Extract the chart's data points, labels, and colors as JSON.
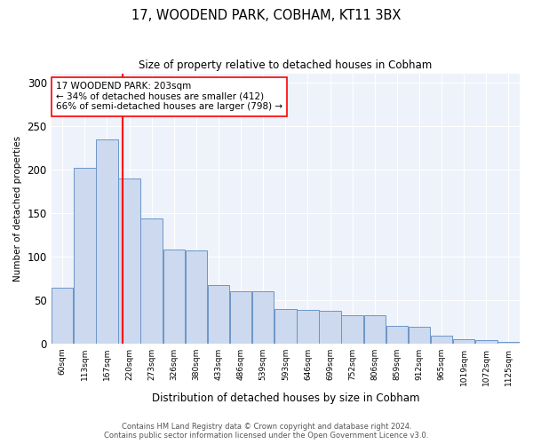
{
  "title": "17, WOODEND PARK, COBHAM, KT11 3BX",
  "subtitle": "Size of property relative to detached houses in Cobham",
  "xlabel": "Distribution of detached houses by size in Cobham",
  "ylabel": "Number of detached properties",
  "bin_labels": [
    "60sqm",
    "113sqm",
    "167sqm",
    "220sqm",
    "273sqm",
    "326sqm",
    "380sqm",
    "433sqm",
    "486sqm",
    "539sqm",
    "593sqm",
    "646sqm",
    "699sqm",
    "752sqm",
    "806sqm",
    "859sqm",
    "912sqm",
    "965sqm",
    "1019sqm",
    "1072sqm",
    "1125sqm"
  ],
  "bar_heights": [
    64,
    202,
    235,
    190,
    144,
    108,
    107,
    67,
    60,
    60,
    40,
    38,
    37,
    32,
    32,
    20,
    19,
    9,
    5,
    4,
    2
  ],
  "bar_color": "#ccd9ee",
  "bar_edge_color": "#6b96c8",
  "annotation_line1": "17 WOODEND PARK: 203sqm",
  "annotation_line2": "← 34% of detached houses are smaller (412)",
  "annotation_line3": "66% of semi-detached houses are larger (798) →",
  "ylim": [
    0,
    310
  ],
  "yticks": [
    0,
    50,
    100,
    150,
    200,
    250,
    300
  ],
  "footer_line1": "Contains HM Land Registry data © Crown copyright and database right 2024.",
  "footer_line2": "Contains public sector information licensed under the Open Government Licence v3.0.",
  "background_color": "#eef2fa"
}
